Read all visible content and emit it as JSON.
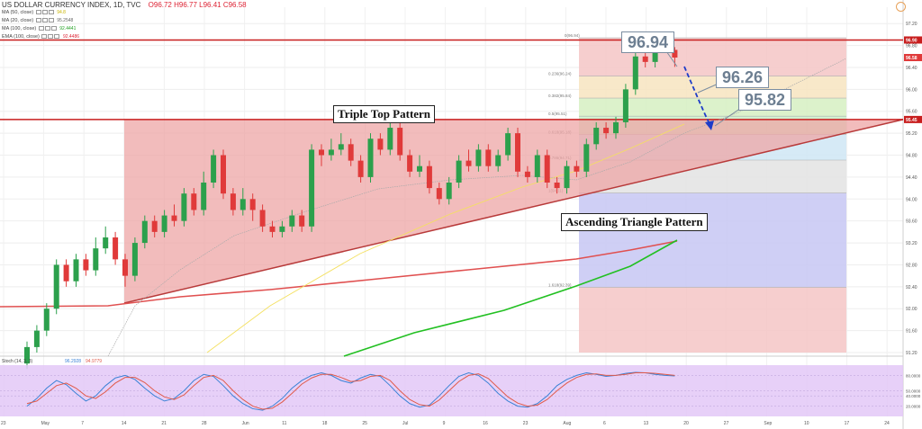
{
  "header": {
    "title": "US DOLLAR CURRENCY INDEX, 1D, TVC",
    "ohlc": "O96.72 H96.77 L96.41 C96.58"
  },
  "indicators": [
    {
      "label": "MA (50, close)",
      "value": "94.8",
      "color": "#c5c5c5"
    },
    {
      "label": "MA (20, close)",
      "value": "95.2548",
      "color": "#888888"
    },
    {
      "label": "MA (100, close)",
      "value": "92.4441",
      "color": "#22c022"
    },
    {
      "label": "EMA (100, close)",
      "value": "92.4486",
      "color": "#e0392b"
    }
  ],
  "annotations": {
    "price_a": "96.94",
    "price_b": "96.26",
    "price_c": "95.82",
    "triple_top": "Triple Top Pattern",
    "ascending": "Ascending Triangle Pattern"
  },
  "stoch_label": "Stoch (14, 3, 3)",
  "stoch_values": [
    "96.2928",
    "94.9779"
  ],
  "colors": {
    "up": "#2ca04c",
    "down": "#e03a3a",
    "resistance": "#c81e1e",
    "triangle_fill": "#eea6a6",
    "ema": "#e05050",
    "ma100": "#22c022",
    "ma50": "#f4e060",
    "ma20": "#aaaaaa",
    "stoch_k": "#3b82d6",
    "stoch_d": "#e05a4a",
    "stoch_bg": "#e3c8f7"
  },
  "chart_data": {
    "type": "candlestick",
    "title": "US DOLLAR CURRENCY INDEX, 1D, TVC",
    "x_tick_labels": [
      "23",
      "May",
      "7",
      "14",
      "21",
      "28",
      "Jun",
      "11",
      "18",
      "25",
      "Jul",
      "9",
      "16",
      "23",
      "Aug",
      "6",
      "13",
      "20",
      "27",
      "Sep",
      "10",
      "17",
      "24"
    ],
    "y_tick_labels": [
      "97.20",
      "96.80",
      "96.40",
      "96.00",
      "95.60",
      "95.20",
      "94.80",
      "94.40",
      "94.00",
      "93.60",
      "93.20",
      "92.80",
      "92.40",
      "92.00",
      "91.60",
      "91.20"
    ],
    "y_range": [
      91.2,
      97.4
    ],
    "last_price": "96.58",
    "resistance_labels": [
      "96.90",
      "95.45"
    ],
    "candles": [
      [
        91.0,
        91.3,
        90.9,
        91.4
      ],
      [
        91.3,
        91.6,
        91.2,
        91.7
      ],
      [
        91.6,
        92.0,
        91.5,
        92.1
      ],
      [
        92.0,
        92.8,
        91.9,
        92.9
      ],
      [
        92.8,
        92.5,
        92.4,
        92.9
      ],
      [
        92.5,
        92.9,
        92.4,
        93.0
      ],
      [
        92.9,
        92.7,
        92.6,
        93.0
      ],
      [
        92.7,
        93.1,
        92.6,
        93.3
      ],
      [
        93.1,
        93.3,
        93.0,
        93.5
      ],
      [
        93.3,
        92.9,
        92.8,
        93.4
      ],
      [
        92.9,
        92.6,
        92.4,
        93.0
      ],
      [
        92.6,
        93.2,
        92.5,
        93.3
      ],
      [
        93.2,
        93.6,
        93.1,
        93.7
      ],
      [
        93.6,
        93.4,
        93.3,
        93.7
      ],
      [
        93.4,
        93.7,
        93.3,
        93.8
      ],
      [
        93.7,
        93.6,
        93.5,
        93.9
      ],
      [
        93.6,
        94.1,
        93.5,
        94.2
      ],
      [
        94.1,
        93.8,
        93.7,
        94.2
      ],
      [
        93.8,
        94.3,
        93.7,
        94.5
      ],
      [
        94.3,
        94.8,
        94.2,
        94.9
      ],
      [
        94.8,
        94.1,
        94.0,
        94.9
      ],
      [
        94.1,
        93.8,
        93.7,
        94.2
      ],
      [
        93.8,
        94.0,
        93.7,
        94.2
      ],
      [
        94.0,
        93.8,
        93.6,
        94.1
      ],
      [
        93.8,
        93.5,
        93.4,
        93.9
      ],
      [
        93.5,
        93.4,
        93.3,
        93.6
      ],
      [
        93.4,
        93.5,
        93.3,
        93.6
      ],
      [
        93.5,
        93.7,
        93.4,
        93.8
      ],
      [
        93.7,
        93.5,
        93.4,
        93.8
      ],
      [
        93.5,
        94.9,
        93.4,
        95.0
      ],
      [
        94.9,
        94.8,
        94.6,
        95.0
      ],
      [
        94.8,
        94.9,
        94.7,
        95.1
      ],
      [
        94.9,
        95.0,
        94.8,
        95.2
      ],
      [
        95.0,
        94.7,
        94.6,
        95.1
      ],
      [
        94.7,
        94.4,
        94.3,
        94.8
      ],
      [
        94.4,
        95.1,
        94.3,
        95.2
      ],
      [
        95.1,
        94.9,
        94.8,
        95.2
      ],
      [
        94.9,
        95.3,
        94.8,
        95.4
      ],
      [
        95.3,
        94.8,
        94.7,
        95.4
      ],
      [
        94.8,
        94.5,
        94.4,
        94.9
      ],
      [
        94.5,
        94.6,
        94.4,
        94.8
      ],
      [
        94.6,
        94.2,
        94.1,
        94.7
      ],
      [
        94.2,
        94.0,
        93.9,
        94.3
      ],
      [
        94.0,
        94.3,
        93.9,
        94.4
      ],
      [
        94.3,
        94.7,
        94.2,
        94.8
      ],
      [
        94.7,
        94.6,
        94.5,
        94.9
      ],
      [
        94.6,
        94.9,
        94.5,
        95.0
      ],
      [
        94.9,
        94.6,
        94.5,
        95.0
      ],
      [
        94.6,
        94.8,
        94.5,
        94.9
      ],
      [
        94.8,
        95.2,
        94.7,
        95.3
      ],
      [
        95.2,
        94.5,
        94.4,
        95.3
      ],
      [
        94.5,
        94.4,
        94.3,
        94.6
      ],
      [
        94.4,
        94.8,
        94.3,
        94.9
      ],
      [
        94.8,
        94.3,
        94.2,
        94.9
      ],
      [
        94.3,
        94.2,
        94.1,
        94.4
      ],
      [
        94.2,
        94.6,
        94.1,
        94.7
      ],
      [
        94.6,
        94.5,
        94.4,
        94.7
      ],
      [
        94.5,
        95.0,
        94.4,
        95.1
      ],
      [
        95.0,
        95.3,
        94.9,
        95.4
      ],
      [
        95.3,
        95.2,
        95.1,
        95.4
      ],
      [
        95.2,
        95.4,
        95.1,
        95.5
      ],
      [
        95.4,
        96.0,
        95.3,
        96.1
      ],
      [
        96.0,
        96.6,
        95.9,
        96.7
      ],
      [
        96.6,
        96.5,
        96.4,
        96.7
      ],
      [
        96.5,
        96.8,
        96.4,
        96.9
      ],
      [
        96.8,
        96.9,
        96.7,
        96.95
      ],
      [
        96.72,
        96.58,
        96.41,
        96.77
      ]
    ],
    "fib_levels": [
      {
        "ratio": "0(96.94)",
        "value": 96.94
      },
      {
        "ratio": "0.236(96.24)",
        "value": 96.24
      },
      {
        "ratio": "0.382(95.84)",
        "value": 95.84
      },
      {
        "ratio": "0.5(95.51)",
        "value": 95.51
      },
      {
        "ratio": "0.618(95.18)",
        "value": 95.18
      },
      {
        "ratio": "0.786(94.71)",
        "value": 94.71
      },
      {
        "ratio": "1(94.11)",
        "value": 94.11
      },
      {
        "ratio": "1.618(92.39)",
        "value": 92.39
      }
    ],
    "stochastic_range": [
      0,
      100
    ],
    "stochastic_ticks": [
      "80.0000",
      "50.0000",
      "40.0000",
      "20.0000"
    ],
    "stoch_k": [
      20,
      35,
      55,
      70,
      62,
      45,
      30,
      40,
      60,
      75,
      80,
      72,
      55,
      40,
      30,
      35,
      50,
      70,
      82,
      78,
      60,
      40,
      25,
      15,
      12,
      20,
      35,
      55,
      70,
      80,
      85,
      80,
      70,
      65,
      75,
      82,
      78,
      60,
      40,
      25,
      18,
      22,
      40,
      60,
      78,
      85,
      80,
      65,
      45,
      30,
      20,
      18,
      25,
      40,
      60,
      72,
      80,
      85,
      82,
      78,
      80,
      84,
      86,
      85,
      82,
      80,
      79
    ],
    "stoch_d": [
      25,
      30,
      45,
      60,
      65,
      55,
      40,
      35,
      48,
      65,
      76,
      76,
      66,
      50,
      38,
      33,
      42,
      60,
      76,
      80,
      70,
      50,
      33,
      20,
      14,
      16,
      28,
      45,
      63,
      75,
      82,
      82,
      76,
      68,
      70,
      78,
      80,
      70,
      50,
      33,
      23,
      20,
      32,
      50,
      68,
      80,
      83,
      74,
      56,
      38,
      26,
      20,
      22,
      33,
      50,
      65,
      76,
      82,
      83,
      80,
      80,
      82,
      85,
      85,
      84,
      82,
      80
    ]
  }
}
